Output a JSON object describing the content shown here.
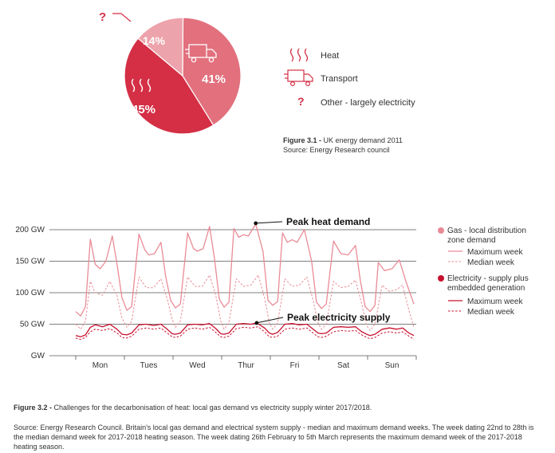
{
  "pie_chart": {
    "type": "pie",
    "slices": [
      {
        "name": "Heat",
        "value": 45,
        "label": "45%",
        "color": "#d42f45",
        "icon": "heat-waves-icon"
      },
      {
        "name": "Transport",
        "value": 41,
        "label": "41%",
        "color": "#e2707d",
        "icon": "truck-icon"
      },
      {
        "name": "Other - largely electricity",
        "value": 14,
        "label": "14%",
        "color": "#eda3ab",
        "icon": "question-mark-icon"
      }
    ],
    "callout_symbol": "?",
    "figure_label": "Figure 3.1 - ",
    "figure_title": "UK energy demand 2011",
    "source": "Source: Energy Research council"
  },
  "chart_data": {
    "type": "line",
    "ylim": [
      0,
      200
    ],
    "yticks": [
      {
        "value": 0,
        "label": "GW"
      },
      {
        "value": 50,
        "label": "50 GW"
      },
      {
        "value": 100,
        "label": "100 GW"
      },
      {
        "value": 150,
        "label": "150 GW"
      },
      {
        "value": 200,
        "label": "200 GW"
      }
    ],
    "categories": [
      "Mon",
      "Tues",
      "Wed",
      "Thur",
      "Fri",
      "Sat",
      "Sun"
    ],
    "grid": true,
    "legend_position": "right",
    "legend": {
      "gas_title": "Gas - local distribution zone demand",
      "gas_title_lines": [
        "Gas - local distribution",
        "zone demand"
      ],
      "elec_title": "Electricity - supply plus embedded generation",
      "elec_title_lines": [
        "Electricity - supply plus",
        "embedded generation"
      ],
      "max_label": "Maximum week",
      "median_label": "Median week"
    },
    "colors": {
      "gas": "#e98b96",
      "electricity": "#c8102e"
    },
    "annotations": [
      {
        "text": "Peak heat demand",
        "day": 3,
        "value": 209
      },
      {
        "text": "Peak electricity supply",
        "day": 3,
        "value": 52
      }
    ],
    "series": [
      {
        "name": "Gas - local distribution zone demand: Maximum week",
        "style": "solid",
        "color": "#e98b96",
        "values": [
          [
            0,
            70
          ],
          [
            0.1,
            63
          ],
          [
            0.2,
            78
          ],
          [
            0.3,
            185
          ],
          [
            0.4,
            145
          ],
          [
            0.5,
            138
          ],
          [
            0.62,
            150
          ],
          [
            0.75,
            190
          ],
          [
            0.85,
            145
          ],
          [
            0.95,
            92
          ],
          [
            1.05,
            72
          ],
          [
            1.15,
            78
          ],
          [
            1.3,
            193
          ],
          [
            1.42,
            168
          ],
          [
            1.5,
            160
          ],
          [
            1.62,
            162
          ],
          [
            1.75,
            180
          ],
          [
            1.85,
            125
          ],
          [
            1.95,
            88
          ],
          [
            2.05,
            76
          ],
          [
            2.15,
            82
          ],
          [
            2.3,
            195
          ],
          [
            2.42,
            170
          ],
          [
            2.5,
            166
          ],
          [
            2.62,
            170
          ],
          [
            2.75,
            205
          ],
          [
            2.85,
            155
          ],
          [
            2.95,
            90
          ],
          [
            3.05,
            77
          ],
          [
            3.15,
            85
          ],
          [
            3.25,
            202
          ],
          [
            3.35,
            188
          ],
          [
            3.45,
            192
          ],
          [
            3.55,
            190
          ],
          [
            3.7,
            209
          ],
          [
            3.85,
            165
          ],
          [
            3.95,
            88
          ],
          [
            4.05,
            80
          ],
          [
            4.15,
            86
          ],
          [
            4.25,
            195
          ],
          [
            4.35,
            180
          ],
          [
            4.45,
            184
          ],
          [
            4.55,
            180
          ],
          [
            4.7,
            200
          ],
          [
            4.85,
            150
          ],
          [
            4.95,
            85
          ],
          [
            5.05,
            75
          ],
          [
            5.15,
            82
          ],
          [
            5.3,
            182
          ],
          [
            5.45,
            162
          ],
          [
            5.6,
            160
          ],
          [
            5.75,
            175
          ],
          [
            5.85,
            120
          ],
          [
            5.95,
            78
          ],
          [
            6.05,
            70
          ],
          [
            6.15,
            80
          ],
          [
            6.22,
            148
          ],
          [
            6.35,
            135
          ],
          [
            6.5,
            138
          ],
          [
            6.65,
            152
          ],
          [
            6.8,
            115
          ],
          [
            6.95,
            82
          ]
        ]
      },
      {
        "name": "Gas - local distribution zone demand: Median week",
        "style": "dashed",
        "color": "#e98b96",
        "values": [
          [
            0,
            50
          ],
          [
            0.1,
            42
          ],
          [
            0.2,
            55
          ],
          [
            0.3,
            118
          ],
          [
            0.4,
            100
          ],
          [
            0.55,
            96
          ],
          [
            0.7,
            118
          ],
          [
            0.85,
            95
          ],
          [
            0.95,
            60
          ],
          [
            1.05,
            45
          ],
          [
            1.15,
            55
          ],
          [
            1.3,
            125
          ],
          [
            1.45,
            108
          ],
          [
            1.6,
            108
          ],
          [
            1.75,
            122
          ],
          [
            1.88,
            90
          ],
          [
            1.98,
            58
          ],
          [
            2.05,
            45
          ],
          [
            2.15,
            55
          ],
          [
            2.3,
            125
          ],
          [
            2.45,
            110
          ],
          [
            2.6,
            110
          ],
          [
            2.75,
            128
          ],
          [
            2.88,
            95
          ],
          [
            2.98,
            55
          ],
          [
            3.05,
            42
          ],
          [
            3.15,
            52
          ],
          [
            3.3,
            122
          ],
          [
            3.45,
            110
          ],
          [
            3.6,
            112
          ],
          [
            3.75,
            128
          ],
          [
            3.88,
            92
          ],
          [
            3.98,
            52
          ],
          [
            4.05,
            42
          ],
          [
            4.15,
            52
          ],
          [
            4.3,
            122
          ],
          [
            4.45,
            110
          ],
          [
            4.6,
            112
          ],
          [
            4.75,
            125
          ],
          [
            4.88,
            88
          ],
          [
            4.98,
            52
          ],
          [
            5.05,
            42
          ],
          [
            5.15,
            50
          ],
          [
            5.3,
            118
          ],
          [
            5.45,
            108
          ],
          [
            5.6,
            110
          ],
          [
            5.75,
            120
          ],
          [
            5.88,
            82
          ],
          [
            5.98,
            48
          ],
          [
            6.05,
            40
          ],
          [
            6.15,
            50
          ],
          [
            6.3,
            112
          ],
          [
            6.45,
            102
          ],
          [
            6.6,
            105
          ],
          [
            6.72,
            112
          ],
          [
            6.85,
            72
          ],
          [
            6.95,
            45
          ]
        ]
      },
      {
        "name": "Electricity - supply plus embedded generation: Maximum week",
        "style": "solid",
        "color": "#c8102e",
        "values": [
          [
            0,
            32
          ],
          [
            0.1,
            30
          ],
          [
            0.2,
            33
          ],
          [
            0.3,
            45
          ],
          [
            0.4,
            49
          ],
          [
            0.55,
            46
          ],
          [
            0.7,
            50
          ],
          [
            0.85,
            42
          ],
          [
            0.95,
            34
          ],
          [
            1.05,
            33
          ],
          [
            1.15,
            36
          ],
          [
            1.3,
            49
          ],
          [
            1.45,
            50
          ],
          [
            1.6,
            48
          ],
          [
            1.75,
            50
          ],
          [
            1.88,
            42
          ],
          [
            1.98,
            35
          ],
          [
            2.05,
            34
          ],
          [
            2.15,
            36
          ],
          [
            2.3,
            49
          ],
          [
            2.45,
            50
          ],
          [
            2.6,
            49
          ],
          [
            2.75,
            51
          ],
          [
            2.88,
            43
          ],
          [
            2.98,
            35
          ],
          [
            3.05,
            34
          ],
          [
            3.15,
            36
          ],
          [
            3.3,
            50
          ],
          [
            3.45,
            51
          ],
          [
            3.6,
            50
          ],
          [
            3.72,
            52
          ],
          [
            3.88,
            44
          ],
          [
            3.98,
            36
          ],
          [
            4.05,
            34
          ],
          [
            4.15,
            37
          ],
          [
            4.3,
            50
          ],
          [
            4.45,
            51
          ],
          [
            4.6,
            49
          ],
          [
            4.75,
            50
          ],
          [
            4.88,
            42
          ],
          [
            4.98,
            36
          ],
          [
            5.05,
            35
          ],
          [
            5.15,
            36
          ],
          [
            5.3,
            45
          ],
          [
            5.45,
            46
          ],
          [
            5.6,
            45
          ],
          [
            5.75,
            46
          ],
          [
            5.88,
            38
          ],
          [
            5.98,
            34
          ],
          [
            6.05,
            32
          ],
          [
            6.15,
            34
          ],
          [
            6.3,
            42
          ],
          [
            6.45,
            44
          ],
          [
            6.6,
            42
          ],
          [
            6.72,
            44
          ],
          [
            6.85,
            36
          ],
          [
            6.95,
            32
          ]
        ]
      },
      {
        "name": "Electricity - supply plus embedded generation: Median week",
        "style": "dashed",
        "color": "#c8102e",
        "values": [
          [
            0,
            28
          ],
          [
            0.1,
            26
          ],
          [
            0.2,
            29
          ],
          [
            0.3,
            38
          ],
          [
            0.4,
            42
          ],
          [
            0.55,
            40
          ],
          [
            0.7,
            43
          ],
          [
            0.85,
            36
          ],
          [
            0.95,
            29
          ],
          [
            1.05,
            28
          ],
          [
            1.15,
            31
          ],
          [
            1.3,
            42
          ],
          [
            1.45,
            44
          ],
          [
            1.6,
            42
          ],
          [
            1.75,
            44
          ],
          [
            1.88,
            36
          ],
          [
            1.98,
            30
          ],
          [
            2.05,
            29
          ],
          [
            2.15,
            31
          ],
          [
            2.3,
            42
          ],
          [
            2.45,
            44
          ],
          [
            2.6,
            42
          ],
          [
            2.75,
            45
          ],
          [
            2.88,
            37
          ],
          [
            2.98,
            30
          ],
          [
            3.05,
            29
          ],
          [
            3.15,
            31
          ],
          [
            3.3,
            43
          ],
          [
            3.45,
            45
          ],
          [
            3.6,
            44
          ],
          [
            3.75,
            46
          ],
          [
            3.88,
            38
          ],
          [
            3.98,
            30
          ],
          [
            4.05,
            29
          ],
          [
            4.15,
            31
          ],
          [
            4.3,
            42
          ],
          [
            4.45,
            44
          ],
          [
            4.6,
            42
          ],
          [
            4.75,
            44
          ],
          [
            4.88,
            36
          ],
          [
            4.98,
            30
          ],
          [
            5.05,
            29
          ],
          [
            5.15,
            31
          ],
          [
            5.3,
            38
          ],
          [
            5.45,
            40
          ],
          [
            5.6,
            39
          ],
          [
            5.75,
            40
          ],
          [
            5.88,
            33
          ],
          [
            5.98,
            29
          ],
          [
            6.05,
            27
          ],
          [
            6.15,
            29
          ],
          [
            6.3,
            36
          ],
          [
            6.45,
            38
          ],
          [
            6.6,
            36
          ],
          [
            6.72,
            38
          ],
          [
            6.85,
            31
          ],
          [
            6.95,
            26
          ]
        ]
      }
    ],
    "figure_label": "Figure 3.2 - ",
    "figure_title": "Challenges for the decarbonisation of heat: local gas demand vs electricity supply winter 2017/2018.",
    "source": "Source: Energy Research Council. Britain's local gas demand and electrical system supply - median and maximum demand weeks. The week dating 22nd to 28th is the median demand week for 2017-2018 heating season. The week dating 26th February to 5th March represents the maximum demand week of the 2017-2018 heating season."
  }
}
